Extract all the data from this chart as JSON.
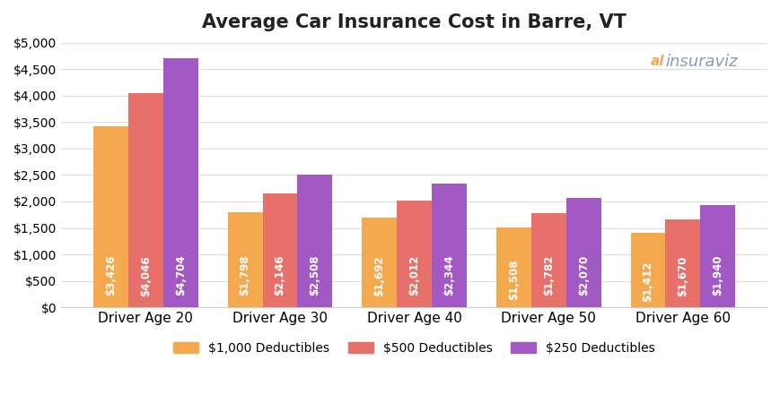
{
  "title": "Average Car Insurance Cost in Barre, VT",
  "categories": [
    "Driver Age 20",
    "Driver Age 30",
    "Driver Age 40",
    "Driver Age 50",
    "Driver Age 60"
  ],
  "series": [
    {
      "label": "$1,000 Deductibles",
      "color": "#F5A94E",
      "values": [
        3426,
        1798,
        1692,
        1508,
        1412
      ]
    },
    {
      "label": "$500 Deductibles",
      "color": "#E8706A",
      "values": [
        4046,
        2146,
        2012,
        1782,
        1670
      ]
    },
    {
      "label": "$250 Deductibles",
      "color": "#A259C4",
      "values": [
        4704,
        2508,
        2344,
        2070,
        1940
      ]
    }
  ],
  "ylim": [
    0,
    5000
  ],
  "yticks": [
    0,
    500,
    1000,
    1500,
    2000,
    2500,
    3000,
    3500,
    4000,
    4500,
    5000
  ],
  "ytick_labels": [
    "$0",
    "$500",
    "$1,000",
    "$1,500",
    "$2,000",
    "$2,500",
    "$3,000",
    "$3,500",
    "$4,000",
    "$4,500",
    "$5,000"
  ],
  "bar_label_color": "#FFFFFF",
  "bar_label_fontsize": 8.5,
  "background_color": "#FFFFFF",
  "grid_color": "#DDDDDD",
  "title_fontsize": 15,
  "axis_label_fontsize": 11,
  "bar_width": 0.26,
  "logo_icon_color": "#F5A94E",
  "logo_text_color": "#8899BB"
}
